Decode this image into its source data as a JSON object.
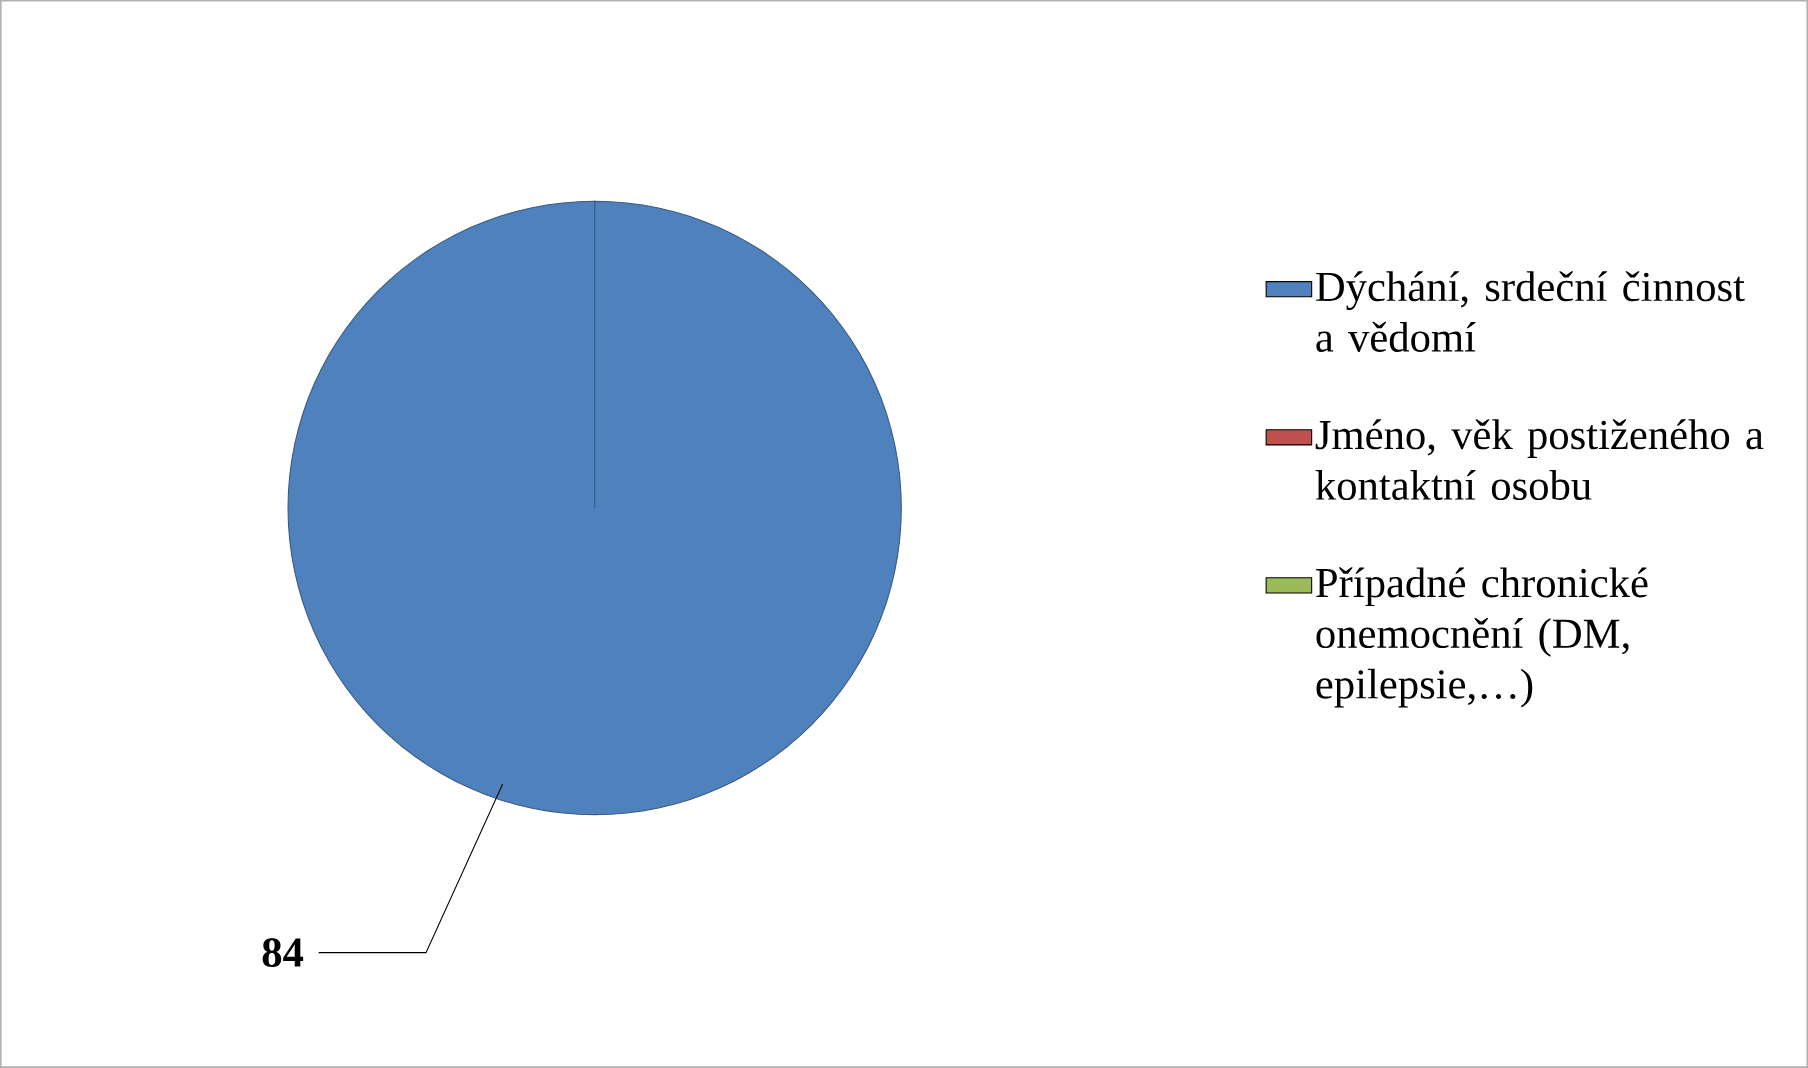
{
  "chart_data": {
    "type": "pie",
    "categories": [
      "Dýchání, srdeční činnost a vědomí",
      "Jméno, věk postiženého a kontaktní osobu",
      "Případné chronické onemocnění (DM, epilepsie,…)"
    ],
    "values": [
      84,
      0,
      0
    ],
    "colors": [
      "#4f81bd",
      "#c0504d",
      "#9bbb59"
    ],
    "data_labels": true,
    "legend": "right"
  }
}
